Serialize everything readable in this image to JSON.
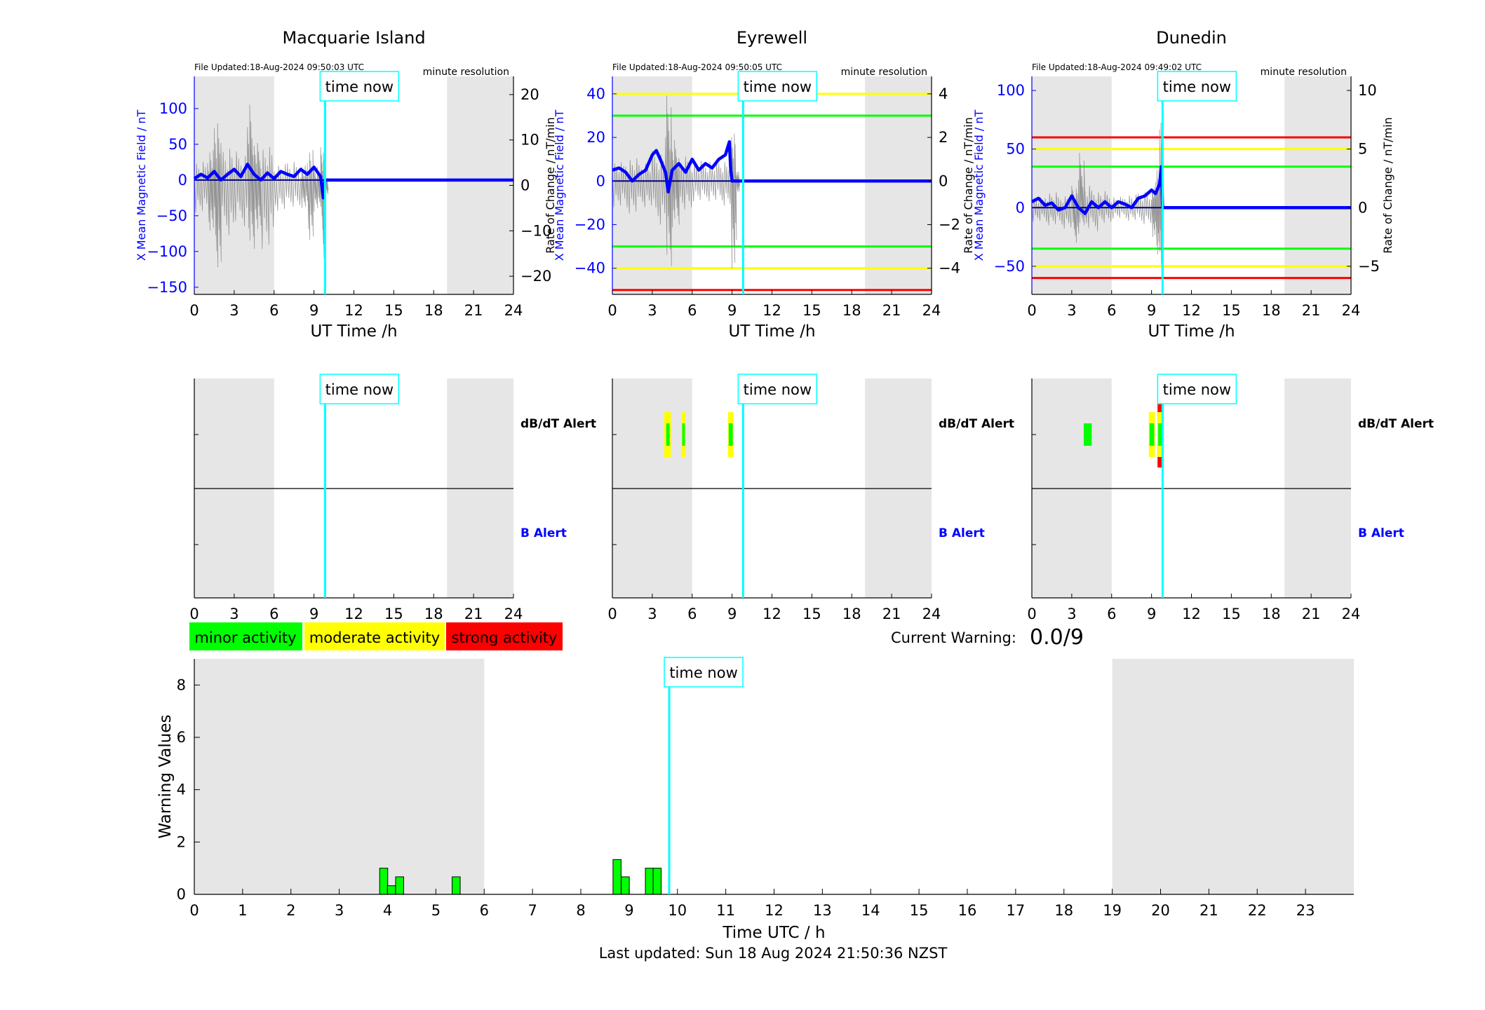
{
  "footer": "Last updated: Sun 18 Aug 2024 21:50:36 NZST",
  "current_warning": {
    "label": "Current Warning:",
    "value": "0.0/9"
  },
  "legend": [
    {
      "label": "minor activity",
      "color": "#00ff00"
    },
    {
      "label": "moderate activity",
      "color": "#ffff00"
    },
    {
      "label": "strong activity",
      "color": "#ff0000"
    }
  ],
  "time_now_label": "time now",
  "alert_labels": {
    "dbdt": "dB/dT Alert",
    "b": "B Alert"
  },
  "colors": {
    "field": "#0000ff",
    "rate": "#808080",
    "now_line": "#00ffff",
    "night": "#e6e6e6",
    "minor": "#00ff00",
    "moderate": "#ffff00",
    "strong": "#ff0000"
  },
  "chart_data": [
    {
      "type": "line",
      "title": "Macquarie Island",
      "file_updated": "File Updated:18-Aug-2024 09:50:03 UTC",
      "resolution": "minute resolution",
      "xlabel": "UT Time /h",
      "ylabel": "X Mean Magnetic Field / nT",
      "y2label": "Rate of Change / nT/min",
      "xlim": [
        0,
        24
      ],
      "xticks": [
        0,
        3,
        6,
        9,
        12,
        15,
        18,
        21,
        24
      ],
      "ylim": [
        -160,
        145
      ],
      "yticks": [
        -150,
        -100,
        -50,
        0,
        50,
        100
      ],
      "y2lim": [
        -24,
        24
      ],
      "y2ticks": [
        -20,
        -10,
        0,
        10,
        20
      ],
      "night": [
        [
          0,
          6
        ],
        [
          19,
          24
        ]
      ],
      "time_now": 9.83,
      "thresholds": [],
      "field_series": {
        "name": "X Mean Magnetic Field",
        "x": [
          0,
          0.5,
          1,
          1.5,
          2,
          2.5,
          3,
          3.5,
          4,
          4.5,
          5,
          5.5,
          6,
          6.5,
          7,
          7.5,
          8,
          8.5,
          9,
          9.5,
          9.7,
          9.83,
          24
        ],
        "y": [
          2,
          8,
          3,
          12,
          0,
          8,
          15,
          5,
          22,
          8,
          0,
          10,
          2,
          12,
          8,
          5,
          15,
          8,
          18,
          5,
          -25,
          0,
          0
        ]
      },
      "rate_series_envelope": {
        "name": "Rate of Change",
        "x": [
          0,
          1,
          1.5,
          2,
          3,
          4,
          4.5,
          5,
          6,
          7,
          8,
          8.5,
          9,
          9.5,
          9.8
        ],
        "max": [
          6,
          9,
          17,
          10,
          8,
          19,
          10,
          9,
          5,
          6,
          5,
          9,
          5,
          9,
          2
        ],
        "min": [
          -6,
          -10,
          -18,
          -11,
          -9,
          -14,
          -11,
          -15,
          -6,
          -5,
          -5,
          -12,
          -5,
          -16,
          -2
        ]
      }
    },
    {
      "type": "line",
      "title": "Eyrewell",
      "file_updated": "File Updated:18-Aug-2024 09:50:05 UTC",
      "resolution": "minute resolution",
      "xlabel": "UT Time /h",
      "ylabel": "X Mean Magnetic Field / nT",
      "y2label": "Rate of Change / nT/min",
      "xlim": [
        0,
        24
      ],
      "xticks": [
        0,
        3,
        6,
        9,
        12,
        15,
        18,
        21,
        24
      ],
      "ylim": [
        -52,
        48
      ],
      "yticks": [
        -40,
        -20,
        0,
        20,
        40
      ],
      "y2lim": [
        -5.2,
        4.8
      ],
      "y2ticks": [
        -4,
        -2,
        0,
        2,
        4
      ],
      "night": [
        [
          0,
          6
        ],
        [
          19,
          24
        ]
      ],
      "time_now": 9.83,
      "thresholds": [
        {
          "value": 40,
          "color": "#ffff00"
        },
        {
          "value": 30,
          "color": "#00ff00"
        },
        {
          "value": -30,
          "color": "#00ff00"
        },
        {
          "value": -40,
          "color": "#ffff00"
        },
        {
          "value": -50,
          "color": "#ff0000"
        }
      ],
      "field_series": {
        "name": "X Mean Magnetic Field",
        "x": [
          0,
          0.5,
          1,
          1.5,
          2,
          2.5,
          3,
          3.3,
          3.6,
          4,
          4.2,
          4.5,
          5,
          5.5,
          6,
          6.5,
          7,
          7.5,
          8,
          8.5,
          8.8,
          8.9,
          9,
          9.83,
          24
        ],
        "y": [
          5,
          6,
          4,
          0,
          3,
          5,
          12,
          14,
          10,
          4,
          -5,
          5,
          8,
          4,
          10,
          5,
          8,
          6,
          10,
          12,
          18,
          5,
          0,
          0,
          0
        ]
      },
      "rate_series_envelope": {
        "name": "Rate of Change",
        "x": [
          0,
          1,
          2,
          3,
          4,
          4.5,
          5,
          6,
          7,
          8,
          8.9,
          9.3
        ],
        "max": [
          1,
          1.2,
          1,
          1.5,
          4.2,
          2,
          1.2,
          1,
          1,
          1,
          2.5,
          0.5
        ],
        "min": [
          -1.2,
          -1.5,
          -1.2,
          -2,
          -3.9,
          -2,
          -1.5,
          -1,
          -1,
          -1.2,
          -4,
          -0.5
        ]
      }
    },
    {
      "type": "line",
      "title": "Dunedin",
      "file_updated": "File Updated:18-Aug-2024 09:49:02 UTC",
      "resolution": "minute resolution",
      "xlabel": "UT Time /h",
      "ylabel": "X Mean Magnetic Field / nT",
      "y2label": "Rate of Change / nT/min",
      "xlim": [
        0,
        24
      ],
      "xticks": [
        0,
        3,
        6,
        9,
        12,
        15,
        18,
        21,
        24
      ],
      "ylim": [
        -74,
        112
      ],
      "yticks": [
        -50,
        0,
        50,
        100
      ],
      "y2lim": [
        -7.4,
        11.2
      ],
      "y2ticks": [
        -5,
        0,
        5,
        10
      ],
      "night": [
        [
          0,
          6
        ],
        [
          19,
          24
        ]
      ],
      "time_now": 9.83,
      "thresholds": [
        {
          "value": 60,
          "color": "#ff0000"
        },
        {
          "value": 50,
          "color": "#ffff00"
        },
        {
          "value": 35,
          "color": "#00ff00"
        },
        {
          "value": -35,
          "color": "#00ff00"
        },
        {
          "value": -50,
          "color": "#ffff00"
        },
        {
          "value": -60,
          "color": "#ff0000"
        }
      ],
      "field_series": {
        "name": "X Mean Magnetic Field",
        "x": [
          0,
          0.5,
          1,
          1.5,
          2,
          2.5,
          3,
          3.5,
          4,
          4.5,
          5,
          5.5,
          6,
          6.5,
          7,
          7.5,
          8,
          8.5,
          9,
          9.3,
          9.6,
          9.75,
          9.83,
          24
        ],
        "y": [
          5,
          8,
          2,
          4,
          -2,
          0,
          10,
          0,
          -5,
          5,
          0,
          5,
          0,
          5,
          3,
          0,
          8,
          10,
          15,
          12,
          20,
          35,
          0,
          0
        ]
      },
      "rate_series_envelope": {
        "name": "Rate of Change",
        "x": [
          0,
          1,
          2,
          3,
          3.5,
          4,
          5,
          6,
          7,
          8,
          9,
          9.3,
          9.6
        ],
        "max": [
          1,
          1.5,
          1.2,
          2,
          5,
          2,
          1.5,
          1,
          1.2,
          1.5,
          2,
          4,
          9
        ],
        "min": [
          -1.2,
          -1.5,
          -1.8,
          -3,
          -1.5,
          -2,
          -1.5,
          -1,
          -1.2,
          -1.5,
          -2.5,
          -4,
          -6
        ]
      }
    },
    {
      "type": "bar",
      "title": "",
      "xlabel": "Time UTC / h",
      "ylabel": "Warning Values",
      "xlim": [
        0,
        24
      ],
      "xticks": [
        0,
        1,
        2,
        3,
        4,
        5,
        6,
        7,
        8,
        9,
        10,
        11,
        12,
        13,
        14,
        15,
        16,
        17,
        18,
        19,
        20,
        21,
        22,
        23
      ],
      "ylim": [
        0,
        9
      ],
      "yticks": [
        0,
        2,
        4,
        6,
        8
      ],
      "night": [
        [
          0,
          6
        ],
        [
          19,
          24
        ]
      ],
      "time_now": 9.83,
      "bar_width": 0.167,
      "x": [
        3.92,
        4.08,
        4.25,
        5.42,
        8.75,
        8.92,
        9.42,
        9.58
      ],
      "values": [
        1.0,
        0.33,
        0.67,
        0.67,
        1.33,
        0.67,
        1.0,
        1.0
      ]
    }
  ],
  "alert_panels": [
    {
      "station": "Macquarie Island",
      "xlim": [
        0,
        24
      ],
      "xticks": [
        0,
        3,
        6,
        9,
        12,
        15,
        18,
        21,
        24
      ],
      "night": [
        [
          0,
          6
        ],
        [
          19,
          24
        ]
      ],
      "time_now": 9.83,
      "dbdt_events": [],
      "b_events": []
    },
    {
      "station": "Eyrewell",
      "xlim": [
        0,
        24
      ],
      "xticks": [
        0,
        3,
        6,
        9,
        12,
        15,
        18,
        21,
        24
      ],
      "night": [
        [
          0,
          6
        ],
        [
          19,
          24
        ]
      ],
      "time_now": 9.83,
      "dbdt_events": [
        {
          "start": 3.9,
          "end": 4.4,
          "level": "moderate"
        },
        {
          "start": 4.05,
          "end": 4.3,
          "level": "minor"
        },
        {
          "start": 5.2,
          "end": 5.5,
          "level": "moderate"
        },
        {
          "start": 5.25,
          "end": 5.45,
          "level": "minor"
        },
        {
          "start": 8.7,
          "end": 9.1,
          "level": "moderate"
        },
        {
          "start": 8.75,
          "end": 9.05,
          "level": "minor"
        }
      ],
      "b_events": []
    },
    {
      "station": "Dunedin",
      "xlim": [
        0,
        24
      ],
      "xticks": [
        0,
        3,
        6,
        9,
        12,
        15,
        18,
        21,
        24
      ],
      "night": [
        [
          0,
          6
        ],
        [
          19,
          24
        ]
      ],
      "time_now": 9.83,
      "dbdt_events": [
        {
          "start": 3.9,
          "end": 4.5,
          "level": "minor"
        },
        {
          "start": 8.8,
          "end": 9.25,
          "level": "moderate"
        },
        {
          "start": 8.85,
          "end": 9.2,
          "level": "minor"
        },
        {
          "start": 9.45,
          "end": 9.9,
          "level": "strong"
        },
        {
          "start": 9.45,
          "end": 9.85,
          "level": "moderate"
        },
        {
          "start": 9.5,
          "end": 9.8,
          "level": "minor"
        }
      ],
      "b_events": []
    }
  ]
}
